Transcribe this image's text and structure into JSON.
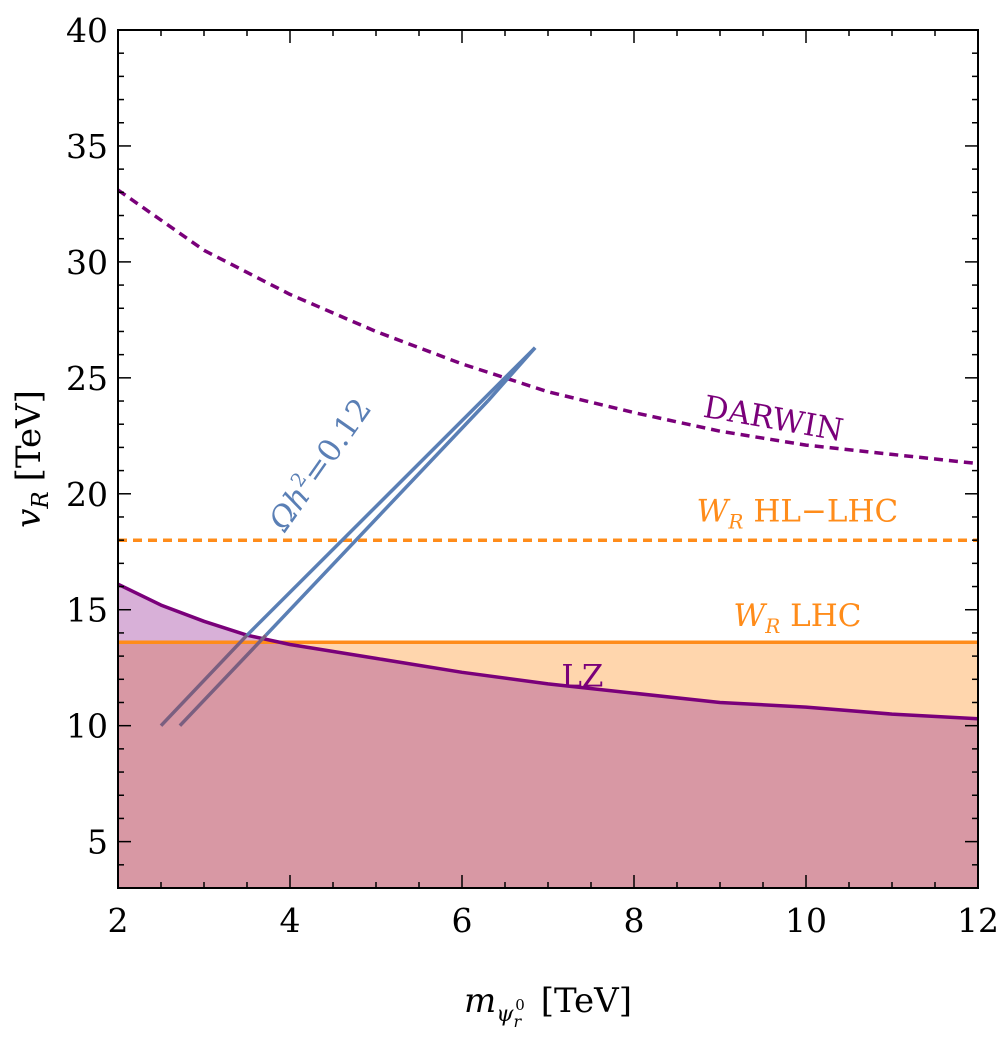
{
  "chart_data": {
    "type": "line",
    "title": "",
    "xlabel": {
      "base": "m",
      "sub": "ψ",
      "subsub": "r",
      "sup": "0",
      "unit": "[TeV]"
    },
    "ylabel": {
      "base": "v",
      "sub": "R",
      "unit": "[TeV]"
    },
    "xlim": [
      2,
      12
    ],
    "ylim": [
      3,
      40
    ],
    "xticks": [
      2,
      4,
      6,
      8,
      10,
      12
    ],
    "yticks": [
      5,
      10,
      15,
      20,
      25,
      30,
      35,
      40
    ],
    "grid": false,
    "colors": {
      "purple": "#7a007a",
      "orange": "#ff8c1a",
      "blue": "#5a7fb5",
      "lz_fill": "#d8b0d8",
      "wr_fill": "#ffd6ad",
      "overlap_fill": "#d898a4",
      "blue_shadow": "#7a5f80"
    },
    "series": [
      {
        "key": "darwin",
        "name": "DARWIN",
        "style": "dashed",
        "x": [
          2.0,
          3.0,
          4.0,
          5.0,
          6.0,
          6.5,
          7.0,
          8.0,
          9.0,
          10.0,
          11.0,
          12.0
        ],
        "y": [
          33.1,
          30.5,
          28.6,
          27.0,
          25.6,
          25.0,
          24.4,
          23.5,
          22.7,
          22.1,
          21.7,
          21.3
        ],
        "label_pos": [
          9.6,
          22.8
        ],
        "label_rotate": 10
      },
      {
        "key": "lz",
        "name": "LZ",
        "style": "solid",
        "x": [
          2.0,
          2.5,
          3.0,
          3.5,
          4.0,
          5.0,
          6.0,
          7.0,
          8.0,
          9.0,
          10.0,
          11.0,
          12.0
        ],
        "y": [
          16.1,
          15.2,
          14.5,
          13.9,
          13.5,
          12.9,
          12.3,
          11.8,
          11.4,
          11.0,
          10.8,
          10.5,
          10.3
        ],
        "label_pos": [
          7.4,
          11.7
        ],
        "label_rotate": 0
      },
      {
        "key": "wr_hllhc",
        "name": "W_R HL-LHC",
        "label_base": "W",
        "label_sub": "R",
        "label_rest": " HL−LHC",
        "style": "dashed",
        "x": [
          2,
          12
        ],
        "y": [
          18.0,
          18.0
        ],
        "label_pos": [
          9.9,
          18.8
        ],
        "label_rotate": 0
      },
      {
        "key": "wr_lhc",
        "name": "W_R LHC",
        "label_base": "W",
        "label_sub": "R",
        "label_rest": " LHC",
        "style": "solid",
        "x": [
          2,
          12
        ],
        "y": [
          13.6,
          13.6
        ],
        "label_pos": [
          9.9,
          14.3
        ],
        "label_rotate": 0
      },
      {
        "key": "relic_a",
        "name": "Ωh²=0.12",
        "style": "solid",
        "x": [
          2.5,
          3.5,
          6.85
        ],
        "y": [
          10.0,
          13.9,
          26.3
        ]
      },
      {
        "key": "relic_b",
        "name": "Ωh²=0.12",
        "style": "solid",
        "x": [
          2.72,
          3.72,
          6.3
        ],
        "y": [
          10.0,
          13.9,
          24.0
        ]
      }
    ],
    "relic_label": {
      "base": "Ωh",
      "sup": "2",
      "rest": "=0.12",
      "pos": [
        4.45,
        21.0
      ],
      "rotate": -55
    }
  }
}
